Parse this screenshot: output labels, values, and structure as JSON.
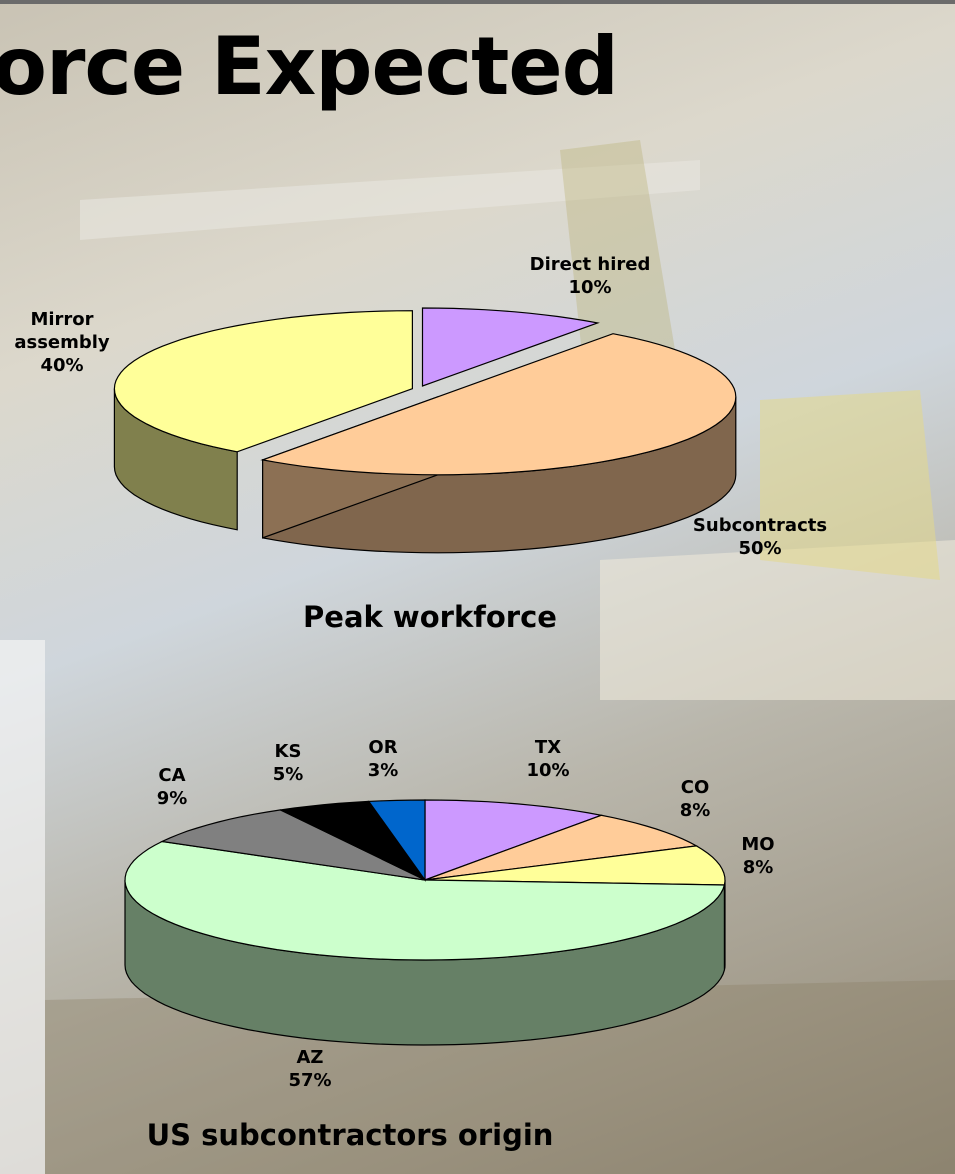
{
  "slide_title": "orce Expected",
  "chart_data": [
    {
      "type": "pie",
      "title": "Peak workforce",
      "categories": [
        "Direct hired",
        "Subcontracts",
        "Mirror assembly"
      ],
      "values": [
        10,
        50,
        40
      ],
      "value_labels": [
        "10%",
        "50%",
        "40%"
      ],
      "colors": [
        "#cc99ff",
        "#ffcc99",
        "#ffff99"
      ]
    },
    {
      "type": "pie",
      "title": "US subcontractors origin",
      "categories": [
        "TX",
        "CO",
        "MO",
        "AZ",
        "CA",
        "KS",
        "OR"
      ],
      "values": [
        10,
        8,
        8,
        57,
        9,
        5,
        3
      ],
      "value_labels": [
        "10%",
        "8%",
        "8%",
        "57%",
        "9%",
        "5%",
        "3%"
      ],
      "colors": [
        "#cc99ff",
        "#ffcc99",
        "#ffff99",
        "#ccffcc",
        "#808080",
        "#000000",
        "#0066cc"
      ]
    }
  ]
}
